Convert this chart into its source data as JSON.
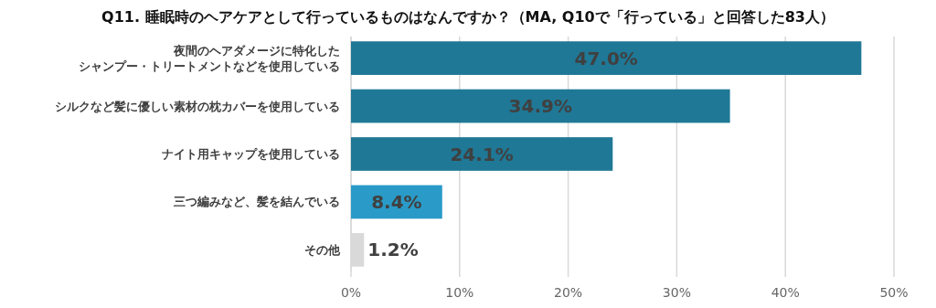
{
  "chart_data": {
    "type": "bar",
    "orientation": "horizontal",
    "title": "Q11. 睡眠時のヘアケアとして行っているものはなんですか？（MA, Q10で「行っている」と回答した83人）",
    "categories": [
      "夜間のヘアダメージに特化したシャンプー・トリートメントなどを使用している",
      "シルクなど髪に優しい素材の枕カバーを使用している",
      "ナイト用キャップを使用している",
      "三つ編みなど、髪を結んでいる",
      "その他"
    ],
    "values": [
      47.0,
      34.9,
      24.1,
      8.4,
      1.2
    ],
    "value_labels": [
      "47.0%",
      "34.9%",
      "24.1%",
      "8.4%",
      "1.2%"
    ],
    "colors": [
      "#1f7896",
      "#1f7896",
      "#1f7896",
      "#2a9bc8",
      "#d9d9d9"
    ],
    "xlim": [
      0,
      50
    ],
    "xticks": [
      {
        "value": 0,
        "label": "0%"
      },
      {
        "value": 10,
        "label": "10%"
      },
      {
        "value": 20,
        "label": "20%"
      },
      {
        "value": 30,
        "label": "30%"
      },
      {
        "value": 40,
        "label": "40%"
      },
      {
        "value": 50,
        "label": "50%"
      }
    ],
    "grid": "x"
  }
}
